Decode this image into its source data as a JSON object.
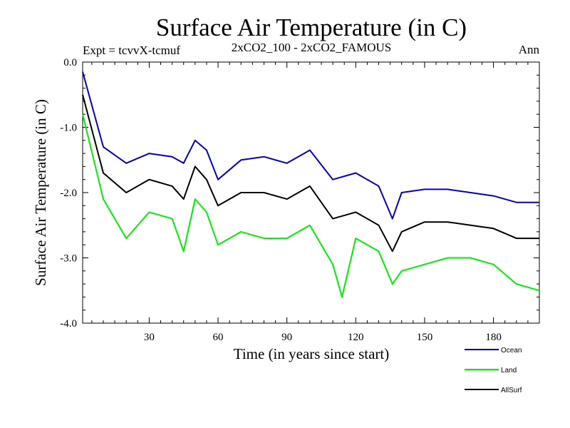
{
  "chart_data": {
    "type": "line",
    "title": "Surface Air Temperature (in C)",
    "subtitle_left": "Expt = tcvvX-tcmuf",
    "subtitle_center": "2xCO2_100 - 2xCO2_FAMOUS",
    "subtitle_right": "Ann",
    "xlabel": "Time (in years since start)",
    "ylabel": "Surface Air Temperature (in C)",
    "xlim": [
      1,
      200
    ],
    "ylim": [
      -4.0,
      0.0
    ],
    "xticks": [
      30,
      60,
      90,
      120,
      150,
      180
    ],
    "yticks": [
      0.0,
      -1.0,
      -2.0,
      -3.0,
      -4.0
    ],
    "ytick_labels": [
      "0.0",
      "-1.0",
      "-2.0",
      "-3.0",
      "-4.0"
    ],
    "grid": false,
    "legend_position": "bottom-right, below plot",
    "series": [
      {
        "name": "Ocean",
        "color": "#0000cc",
        "x": [
          1,
          10,
          20,
          30,
          40,
          45,
          50,
          55,
          60,
          70,
          80,
          90,
          100,
          110,
          120,
          130,
          136,
          140,
          150,
          160,
          170,
          180,
          190,
          200
        ],
        "values": [
          -0.15,
          -1.3,
          -1.55,
          -1.4,
          -1.45,
          -1.55,
          -1.2,
          -1.35,
          -1.8,
          -1.5,
          -1.45,
          -1.55,
          -1.35,
          -1.8,
          -1.7,
          -1.9,
          -2.4,
          -2.0,
          -1.95,
          -1.95,
          -2.0,
          -2.05,
          -2.15,
          -2.15
        ]
      },
      {
        "name": "Land",
        "color": "#00ee00",
        "x": [
          1,
          10,
          20,
          30,
          40,
          45,
          50,
          55,
          60,
          70,
          80,
          90,
          100,
          110,
          114,
          120,
          130,
          136,
          140,
          150,
          160,
          170,
          180,
          190,
          200
        ],
        "values": [
          -0.8,
          -2.1,
          -2.7,
          -2.3,
          -2.4,
          -2.9,
          -2.1,
          -2.3,
          -2.8,
          -2.6,
          -2.7,
          -2.7,
          -2.5,
          -3.1,
          -3.6,
          -2.7,
          -2.9,
          -3.4,
          -3.2,
          -3.1,
          -3.0,
          -3.0,
          -3.1,
          -3.4,
          -3.5
        ]
      },
      {
        "name": "AllSurf",
        "color": "#000000",
        "x": [
          1,
          10,
          20,
          30,
          40,
          45,
          50,
          55,
          60,
          70,
          80,
          90,
          100,
          110,
          120,
          130,
          136,
          140,
          150,
          160,
          170,
          180,
          190,
          200
        ],
        "values": [
          -0.5,
          -1.7,
          -2.0,
          -1.8,
          -1.9,
          -2.1,
          -1.6,
          -1.8,
          -2.2,
          -2.0,
          -2.0,
          -2.1,
          -1.9,
          -2.4,
          -2.3,
          -2.5,
          -2.9,
          -2.6,
          -2.45,
          -2.45,
          -2.5,
          -2.55,
          -2.7,
          -2.7
        ]
      }
    ]
  }
}
